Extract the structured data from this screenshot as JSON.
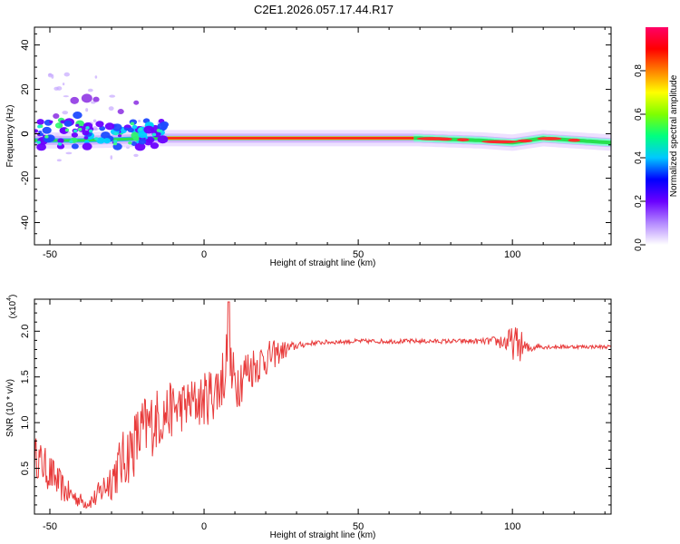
{
  "title": "C2E1.2026.057.17.44.R17",
  "colors": {
    "line": "#e83a3a",
    "axis": "#000000",
    "band_core": "#ff1a1a",
    "band_mid": "#28e050",
    "band_edge": "#8a2be2"
  },
  "chart_data": [
    {
      "type": "heatmap",
      "title": "C2E1.2026.057.17.44.R17",
      "xlabel": "Height of straight line (km)",
      "ylabel": "Frequency (Hz)",
      "xlim": [
        -55,
        132
      ],
      "ylim": [
        -50,
        48
      ],
      "x_ticks": [
        -50,
        0,
        50,
        100
      ],
      "y_ticks": [
        -40,
        -20,
        0,
        20,
        40
      ],
      "colorbar": {
        "label": "Normalized spectral amplitude",
        "range": [
          0,
          1
        ],
        "ticks": [
          0.0,
          0.2,
          0.4,
          0.6,
          0.8
        ],
        "tick_labels": [
          "0.0",
          "0.2",
          "0.4",
          "0.6",
          "0.8"
        ],
        "colormap": [
          "#ffffff",
          "#b388ff",
          "#6a00ff",
          "#0000ff",
          "#00c8ff",
          "#00ff80",
          "#7fff00",
          "#ffff00",
          "#ff8000",
          "#ff0000",
          "#ff0066"
        ]
      },
      "band": {
        "center_hz": [
          [
            -55,
            -3
          ],
          [
            -40,
            -3
          ],
          [
            -15,
            -2
          ],
          [
            0,
            -2
          ],
          [
            20,
            -2
          ],
          [
            50,
            -2
          ],
          [
            70,
            -2
          ],
          [
            90,
            -3
          ],
          [
            100,
            -4
          ],
          [
            110,
            -2
          ],
          [
            132,
            -4
          ]
        ],
        "core_x_range": [
          -13,
          68
        ]
      }
    },
    {
      "type": "line",
      "xlabel": "Height of straight line (km)",
      "ylabel": "SNR (10 * v/v)",
      "y_scale_label": "(x10",
      "y_scale_exp": "4",
      "xlim": [
        -55,
        132
      ],
      "ylim": [
        0,
        23500
      ],
      "x_ticks": [
        -50,
        0,
        50,
        100
      ],
      "y_ticks": [
        5000,
        10000,
        15000,
        20000
      ],
      "y_tick_labels": [
        "0.5",
        "1.0",
        "1.5",
        "2.0"
      ],
      "series": [
        {
          "name": "SNR",
          "x": [
            -55,
            -50,
            -45,
            -40,
            -38,
            -35,
            -30,
            -25,
            -20,
            -15,
            -10,
            -5,
            0,
            5,
            7,
            8,
            9,
            10,
            15,
            20,
            25,
            30,
            35,
            40,
            50,
            60,
            70,
            80,
            90,
            95,
            100,
            102,
            105,
            108,
            110,
            120,
            132
          ],
          "y": [
            6500,
            4500,
            2500,
            1500,
            1200,
            1800,
            4000,
            6500,
            9000,
            10500,
            11500,
            12000,
            12500,
            14000,
            16000,
            20000,
            14500,
            14500,
            16000,
            17000,
            17800,
            18400,
            18700,
            18800,
            18900,
            18900,
            18900,
            18900,
            18900,
            18900,
            18700,
            18600,
            18000,
            18400,
            18300,
            18300,
            18300
          ],
          "noise": [
            2200,
            2200,
            1500,
            800,
            700,
            1200,
            2500,
            3500,
            4000,
            3500,
            3000,
            2800,
            3000,
            3500,
            3500,
            5000,
            3500,
            3500,
            2500,
            2000,
            1200,
            400,
            250,
            250,
            250,
            250,
            250,
            250,
            300,
            600,
            1800,
            2000,
            700,
            300,
            250,
            200,
            200
          ]
        }
      ]
    }
  ]
}
